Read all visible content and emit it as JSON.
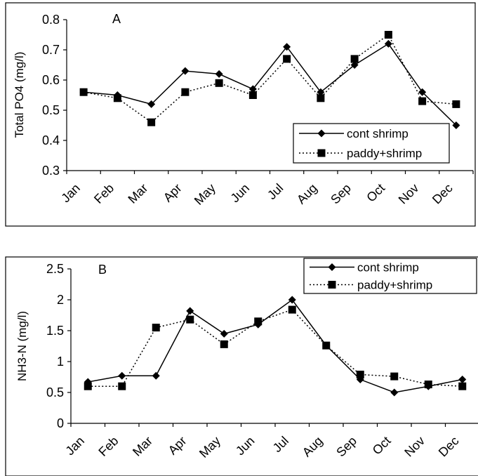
{
  "chart_data": [
    {
      "type": "line",
      "panel_label": "A",
      "title": "",
      "xlabel": "",
      "ylabel": "Total PO4 (mg/l)",
      "categories": [
        "Jan",
        "Feb",
        "Mar",
        "Apr",
        "May",
        "Jun",
        "Jul",
        "Aug",
        "Sep",
        "Oct",
        "Nov",
        "Dec"
      ],
      "ylim": [
        0.3,
        0.8
      ],
      "yticks": [
        "0.3",
        "0.4",
        "0.5",
        "0.6",
        "0.7",
        "0.8"
      ],
      "grid": false,
      "legend_position": "bottom-right",
      "series": [
        {
          "name": "cont shrimp",
          "marker": "diamond",
          "line": "solid",
          "values": [
            0.56,
            0.55,
            0.52,
            0.63,
            0.62,
            0.57,
            0.71,
            0.56,
            0.65,
            0.72,
            0.56,
            0.45
          ]
        },
        {
          "name": "paddy+shrimp",
          "marker": "square",
          "line": "dotted",
          "values": [
            0.56,
            0.54,
            0.46,
            0.56,
            0.59,
            0.55,
            0.67,
            0.54,
            0.67,
            0.75,
            0.53,
            0.52
          ]
        }
      ]
    },
    {
      "type": "line",
      "panel_label": "B",
      "title": "",
      "xlabel": "",
      "ylabel": "NH3-N (mg/l)",
      "categories": [
        "Jan",
        "Feb",
        "Mar",
        "Apr",
        "May",
        "Jun",
        "Jul",
        "Aug",
        "Sep",
        "Oct",
        "Nov",
        "Dec"
      ],
      "ylim": [
        0,
        2.5
      ],
      "yticks": [
        "0",
        "0.5",
        "1",
        "1.5",
        "2",
        "2.5"
      ],
      "grid": false,
      "legend_position": "top-right",
      "series": [
        {
          "name": "cont shrimp",
          "marker": "diamond",
          "line": "solid",
          "values": [
            0.67,
            0.77,
            0.77,
            1.82,
            1.45,
            1.6,
            2.0,
            1.26,
            0.71,
            0.5,
            0.6,
            0.71
          ]
        },
        {
          "name": "paddy+shrimp",
          "marker": "square",
          "line": "dotted",
          "values": [
            0.6,
            0.6,
            1.55,
            1.68,
            1.28,
            1.65,
            1.84,
            1.26,
            0.79,
            0.76,
            0.63,
            0.6
          ]
        }
      ]
    }
  ],
  "colors": {
    "line": "#000000",
    "background": "#ffffff"
  }
}
